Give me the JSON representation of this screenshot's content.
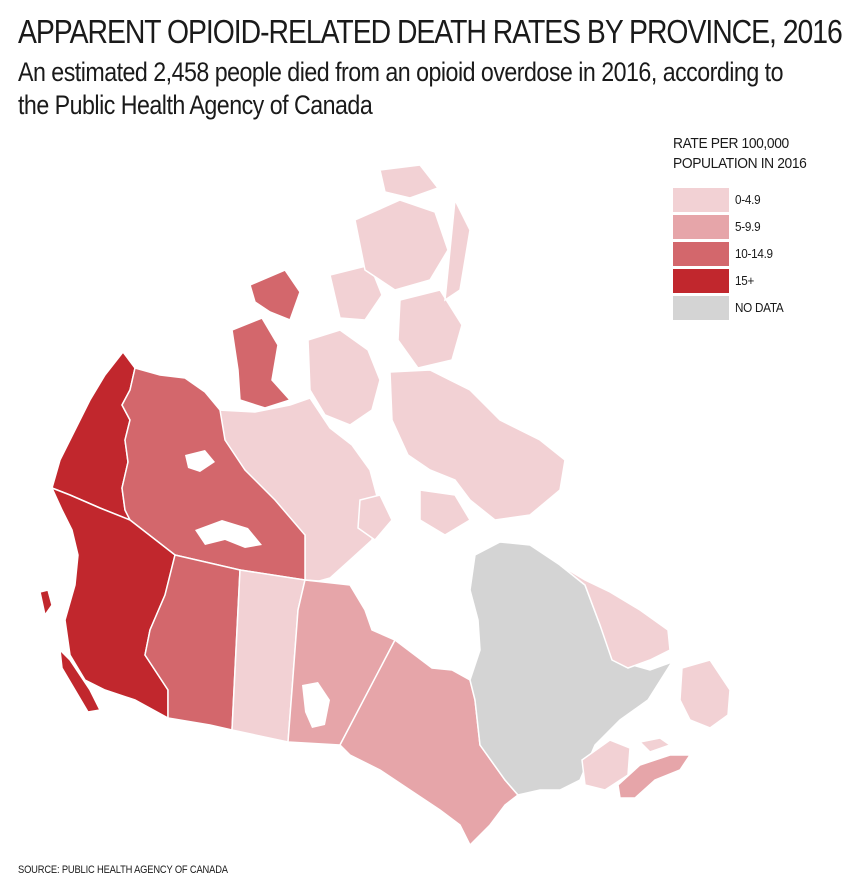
{
  "header": {
    "title": "APPARENT OPIOID-RELATED DEATH RATES BY PROVINCE, 2016",
    "subtitle": "An estimated 2,458 people died from an opioid overdose in 2016, according to the Public Health Agency of Canada"
  },
  "legend": {
    "title_line1": "RATE PER 100,000",
    "title_line2": "POPULATION IN 2016",
    "items": [
      {
        "label": "0-4.9",
        "color": "#f2d1d4"
      },
      {
        "label": "5-9.9",
        "color": "#e6a5a9"
      },
      {
        "label": "10-14.9",
        "color": "#d3676c"
      },
      {
        "label": "15+",
        "color": "#c1272d"
      },
      {
        "label": "NO DATA",
        "color": "#d4d4d4"
      }
    ]
  },
  "regions": [
    {
      "name": "British Columbia",
      "category": "15+"
    },
    {
      "name": "Yukon",
      "category": "15+"
    },
    {
      "name": "Northwest Territories",
      "category": "10-14.9"
    },
    {
      "name": "Alberta",
      "category": "10-14.9"
    },
    {
      "name": "Saskatchewan",
      "category": "0-4.9"
    },
    {
      "name": "Manitoba",
      "category": "5-9.9"
    },
    {
      "name": "Ontario",
      "category": "5-9.9"
    },
    {
      "name": "Quebec",
      "category": "NO DATA"
    },
    {
      "name": "Nunavut",
      "category": "0-4.9"
    },
    {
      "name": "Newfoundland and Labrador",
      "category": "0-4.9"
    },
    {
      "name": "New Brunswick",
      "category": "0-4.9"
    },
    {
      "name": "Nova Scotia",
      "category": "5-9.9"
    },
    {
      "name": "Prince Edward Island",
      "category": "0-4.9"
    }
  ],
  "source": "SOURCE: PUBLIC HEALTH AGENCY OF CANADA"
}
